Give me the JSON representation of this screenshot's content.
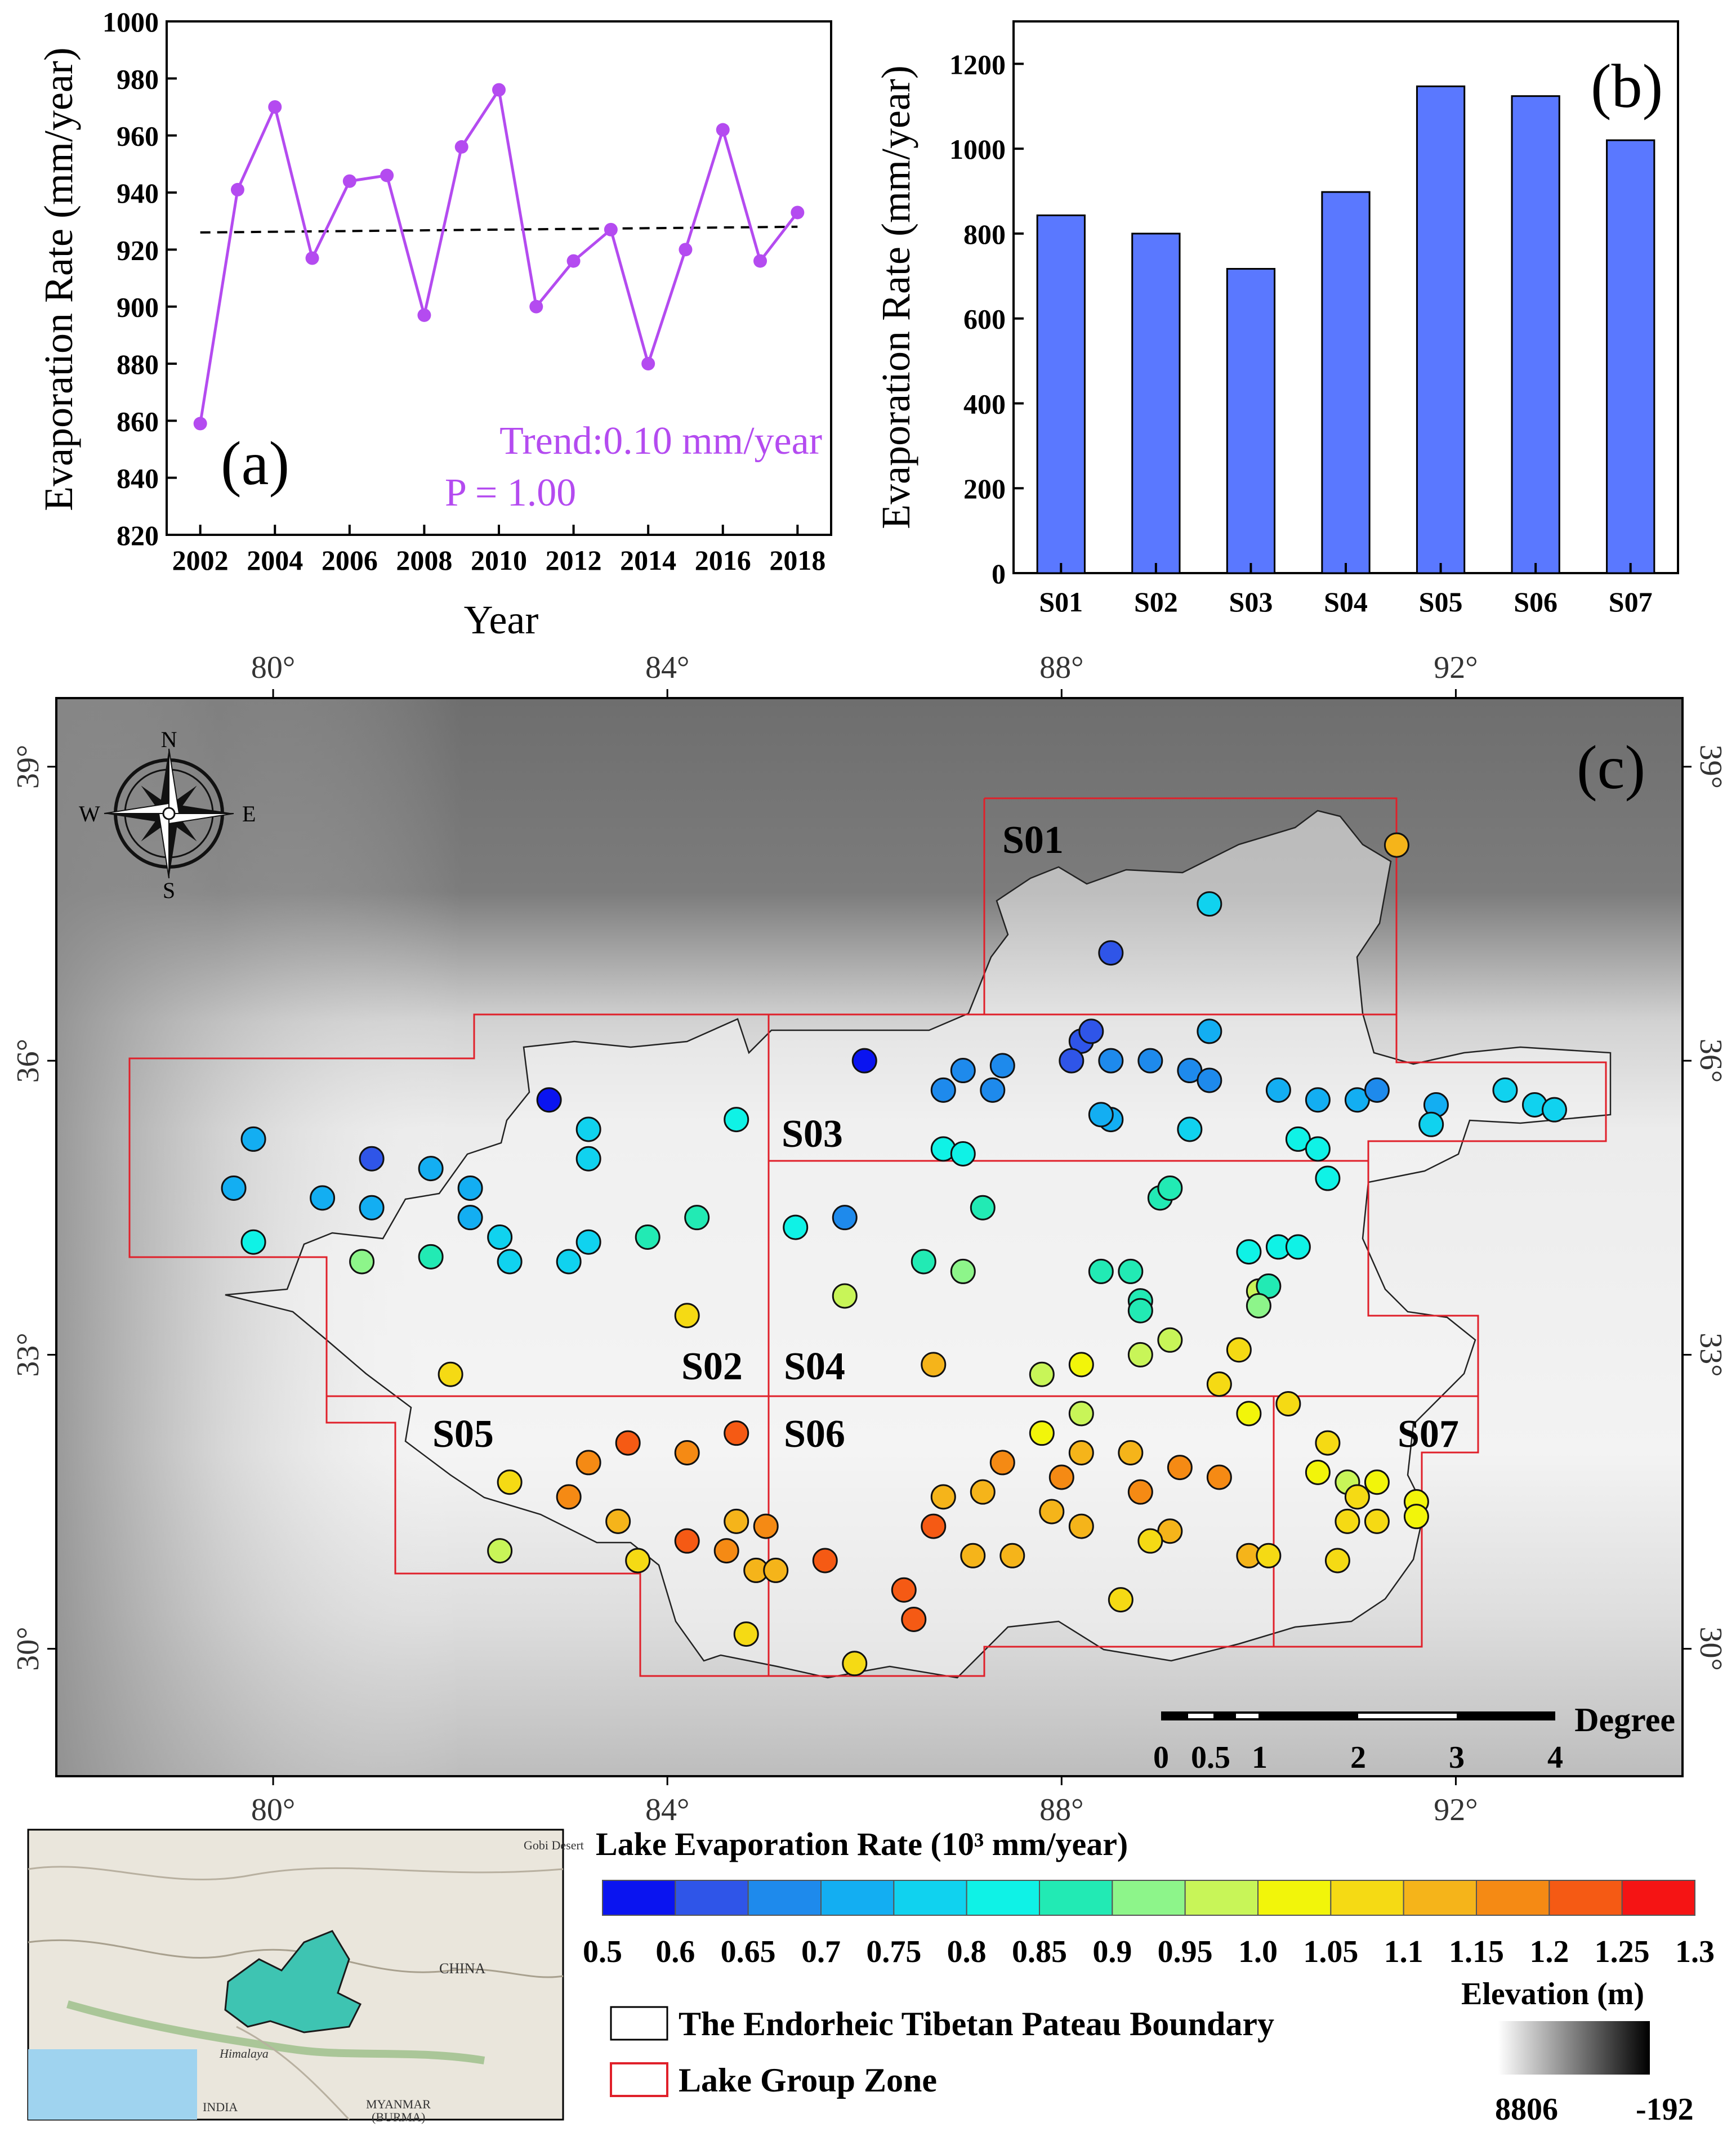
{
  "colors": {
    "line_a": "#b44bf0",
    "bar_b": "#5a78ff",
    "zone": "#e0202a",
    "boundary": "#222222"
  },
  "chart_data": [
    {
      "id": "a",
      "type": "line",
      "panel_label": "(a)",
      "xlabel": "Year",
      "ylabel": "Evaporation Rate (mm/year)",
      "xlim": [
        2001.1,
        2018.9
      ],
      "ylim": [
        820,
        1000
      ],
      "xticks": [
        "2002",
        "2004",
        "2006",
        "2008",
        "2010",
        "2012",
        "2014",
        "2016",
        "2018"
      ],
      "yticks": [
        "820",
        "840",
        "860",
        "880",
        "900",
        "920",
        "940",
        "960",
        "980",
        "1000"
      ],
      "x": [
        2002,
        2003,
        2004,
        2005,
        2006,
        2007,
        2008,
        2009,
        2010,
        2011,
        2012,
        2013,
        2014,
        2015,
        2016,
        2017,
        2018
      ],
      "values": [
        859,
        941,
        970,
        917,
        944,
        946,
        897,
        956,
        976,
        900,
        916,
        927,
        880,
        920,
        962,
        916,
        933
      ],
      "trend": {
        "from": [
          2002,
          926
        ],
        "to": [
          2018,
          928
        ]
      },
      "annotations": {
        "trend": "Trend:0.10 mm/year",
        "p": "P = 1.00"
      }
    },
    {
      "id": "b",
      "type": "bar",
      "panel_label": "(b)",
      "xlabel": "",
      "ylabel": "Evaporation Rate (mm/year)",
      "ylim": [
        0,
        1300
      ],
      "yticks": [
        "0",
        "200",
        "400",
        "600",
        "800",
        "1000",
        "1200"
      ],
      "categories": [
        "S01",
        "S02",
        "S03",
        "S04",
        "S05",
        "S06",
        "S07"
      ],
      "values": [
        843,
        800,
        717,
        898,
        1147,
        1124,
        1020
      ]
    },
    {
      "id": "c",
      "type": "scatter",
      "panel_label": "(c)",
      "lon_range": [
        77.8,
        94.3
      ],
      "lat_range": [
        28.7,
        39.7
      ],
      "lon_ticks": [
        "80°",
        "84°",
        "88°",
        "92°"
      ],
      "lat_ticks": [
        "39°",
        "36°",
        "33°",
        "30°"
      ],
      "compass": {
        "n": "N",
        "s": "S",
        "e": "E",
        "w": "W"
      },
      "zones": [
        {
          "name": "S01",
          "label_at": [
            87.7,
            38.6
          ]
        },
        {
          "name": "S02",
          "label_at": [
            84.6,
            32.9
          ]
        },
        {
          "name": "S03",
          "label_at": [
            86.3,
            35.4
          ]
        },
        {
          "name": "S04",
          "label_at": [
            85.8,
            32.9
          ]
        },
        {
          "name": "S05",
          "label_at": [
            82.0,
            32.2
          ]
        },
        {
          "name": "S06",
          "label_at": [
            85.8,
            32.2
          ]
        },
        {
          "name": "S07",
          "label_at": [
            91.3,
            32.1
          ]
        }
      ],
      "scale_bar": {
        "unit": "Degree",
        "labels": [
          "0",
          "0.5",
          "1",
          "2",
          "3",
          "4"
        ]
      },
      "colorbar": {
        "title": "Lake Evaporation Rate (10³ mm/year)",
        "ticks": [
          "0.5",
          "0.6",
          "0.65",
          "0.7",
          "0.75",
          "0.8",
          "0.85",
          "0.9",
          "0.95",
          "1.0",
          "1.05",
          "1.1",
          "1.15",
          "1.2",
          "1.25",
          "1.3"
        ],
        "colors": [
          "#0a14f0",
          "#2f55e8",
          "#1e8aec",
          "#13aef2",
          "#10d2ef",
          "#0ff2e6",
          "#22eab4",
          "#8df58a",
          "#c8f558",
          "#f2f50a",
          "#f5da14",
          "#f5b41a",
          "#f58a14",
          "#f55a14",
          "#f51414"
        ]
      },
      "legend": {
        "boundary": "The Endorheic Tibetan Pateau Boundary",
        "zone": "Lake Group Zone"
      },
      "elevation": {
        "title": "Elevation (m)",
        "max": "8806",
        "min": "-192"
      },
      "inset": {
        "gobi": "Gobi Desert",
        "china": "CHINA",
        "himalaya": "Himalaya",
        "india": "INDIA",
        "myanmar": "MYANMAR",
        "burma": "(BURMA)"
      },
      "lakes": [
        [
          91.4,
          38.2,
          1.1
        ],
        [
          89.5,
          37.6,
          0.75
        ],
        [
          88.5,
          37.1,
          0.6
        ],
        [
          86.0,
          36.0,
          0.5
        ],
        [
          88.2,
          36.2,
          0.6
        ],
        [
          88.3,
          36.3,
          0.6
        ],
        [
          88.1,
          36.0,
          0.6
        ],
        [
          88.5,
          36.0,
          0.65
        ],
        [
          88.9,
          36.0,
          0.65
        ],
        [
          89.3,
          35.9,
          0.65
        ],
        [
          89.5,
          36.3,
          0.7
        ],
        [
          89.5,
          35.8,
          0.65
        ],
        [
          87.0,
          35.9,
          0.65
        ],
        [
          87.4,
          35.95,
          0.65
        ],
        [
          86.8,
          35.7,
          0.65
        ],
        [
          87.3,
          35.7,
          0.65
        ],
        [
          88.5,
          35.4,
          0.7
        ],
        [
          88.4,
          35.45,
          0.7
        ],
        [
          89.3,
          35.3,
          0.75
        ],
        [
          86.8,
          35.1,
          0.8
        ],
        [
          87.0,
          35.05,
          0.8
        ],
        [
          90.2,
          35.7,
          0.7
        ],
        [
          90.6,
          35.6,
          0.7
        ],
        [
          91.0,
          35.6,
          0.7
        ],
        [
          91.2,
          35.7,
          0.65
        ],
        [
          91.8,
          35.55,
          0.7
        ],
        [
          91.75,
          35.35,
          0.75
        ],
        [
          92.5,
          35.7,
          0.75
        ],
        [
          92.8,
          35.55,
          0.75
        ],
        [
          93.0,
          35.5,
          0.75
        ],
        [
          90.4,
          35.2,
          0.8
        ],
        [
          90.6,
          35.1,
          0.8
        ],
        [
          90.7,
          34.8,
          0.8
        ],
        [
          82.8,
          35.6,
          0.5
        ],
        [
          79.8,
          35.2,
          0.7
        ],
        [
          81.0,
          35.0,
          0.6
        ],
        [
          81.6,
          34.9,
          0.7
        ],
        [
          82.0,
          34.7,
          0.7
        ],
        [
          83.2,
          35.3,
          0.75
        ],
        [
          83.2,
          35.0,
          0.75
        ],
        [
          84.7,
          35.4,
          0.8
        ],
        [
          79.6,
          34.7,
          0.7
        ],
        [
          80.5,
          34.6,
          0.7
        ],
        [
          81.0,
          34.5,
          0.7
        ],
        [
          82.0,
          34.4,
          0.7
        ],
        [
          82.3,
          34.2,
          0.75
        ],
        [
          79.8,
          34.15,
          0.8
        ],
        [
          80.9,
          33.95,
          0.9
        ],
        [
          81.6,
          34.0,
          0.85
        ],
        [
          82.4,
          33.95,
          0.75
        ],
        [
          83.0,
          33.95,
          0.75
        ],
        [
          83.2,
          34.15,
          0.75
        ],
        [
          83.8,
          34.2,
          0.85
        ],
        [
          84.3,
          34.4,
          0.85
        ],
        [
          84.2,
          33.4,
          1.05
        ],
        [
          81.8,
          32.8,
          1.05
        ],
        [
          85.3,
          34.3,
          0.8
        ],
        [
          85.8,
          34.4,
          0.65
        ],
        [
          86.6,
          33.95,
          0.85
        ],
        [
          87.2,
          34.5,
          0.85
        ],
        [
          87.0,
          33.85,
          0.9
        ],
        [
          85.8,
          33.6,
          0.95
        ],
        [
          86.7,
          32.9,
          1.1
        ],
        [
          89.0,
          34.6,
          0.85
        ],
        [
          89.1,
          34.7,
          0.85
        ],
        [
          88.4,
          33.85,
          0.85
        ],
        [
          88.7,
          33.85,
          0.85
        ],
        [
          88.8,
          33.55,
          0.85
        ],
        [
          88.8,
          33.45,
          0.85
        ],
        [
          88.8,
          33.0,
          0.95
        ],
        [
          89.1,
          33.15,
          0.95
        ],
        [
          88.2,
          32.9,
          1.0
        ],
        [
          87.8,
          32.8,
          0.95
        ],
        [
          89.9,
          34.05,
          0.8
        ],
        [
          90.2,
          34.1,
          0.8
        ],
        [
          90.4,
          34.1,
          0.8
        ],
        [
          90.0,
          33.65,
          0.95
        ],
        [
          90.1,
          33.7,
          0.85
        ],
        [
          90.0,
          33.5,
          0.9
        ],
        [
          89.8,
          33.05,
          1.05
        ],
        [
          89.6,
          32.7,
          1.05
        ],
        [
          83.6,
          32.1,
          1.2
        ],
        [
          84.7,
          32.2,
          1.2
        ],
        [
          84.2,
          32.0,
          1.15
        ],
        [
          83.2,
          31.9,
          1.15
        ],
        [
          82.4,
          31.7,
          1.05
        ],
        [
          83.0,
          31.55,
          1.15
        ],
        [
          83.5,
          31.3,
          1.1
        ],
        [
          84.7,
          31.3,
          1.1
        ],
        [
          84.2,
          31.1,
          1.2
        ],
        [
          84.6,
          31.0,
          1.15
        ],
        [
          85.0,
          31.25,
          1.15
        ],
        [
          82.3,
          31.0,
          0.95
        ],
        [
          83.7,
          30.9,
          1.05
        ],
        [
          84.9,
          30.8,
          1.1
        ],
        [
          85.1,
          30.8,
          1.1
        ],
        [
          84.8,
          30.15,
          1.05
        ],
        [
          88.2,
          32.4,
          0.95
        ],
        [
          87.8,
          32.2,
          1.0
        ],
        [
          88.2,
          32.0,
          1.1
        ],
        [
          88.7,
          32.0,
          1.1
        ],
        [
          87.4,
          31.9,
          1.15
        ],
        [
          88.0,
          31.75,
          1.15
        ],
        [
          89.2,
          31.85,
          1.15
        ],
        [
          89.6,
          31.75,
          1.15
        ],
        [
          86.8,
          31.55,
          1.1
        ],
        [
          87.2,
          31.6,
          1.1
        ],
        [
          88.8,
          31.6,
          1.15
        ],
        [
          87.9,
          31.4,
          1.1
        ],
        [
          88.2,
          31.25,
          1.1
        ],
        [
          89.1,
          31.2,
          1.1
        ],
        [
          86.7,
          31.25,
          1.2
        ],
        [
          87.1,
          30.95,
          1.1
        ],
        [
          87.5,
          30.95,
          1.1
        ],
        [
          88.9,
          31.1,
          1.05
        ],
        [
          89.9,
          30.95,
          1.1
        ],
        [
          90.1,
          30.95,
          1.05
        ],
        [
          85.6,
          30.9,
          1.2
        ],
        [
          86.4,
          30.6,
          1.2
        ],
        [
          86.5,
          30.3,
          1.2
        ],
        [
          88.6,
          30.5,
          1.05
        ],
        [
          89.9,
          32.4,
          1.0
        ],
        [
          90.3,
          32.5,
          1.05
        ],
        [
          85.9,
          29.85,
          1.05
        ],
        [
          90.7,
          32.1,
          1.05
        ],
        [
          90.6,
          31.8,
          1.0
        ],
        [
          90.9,
          31.7,
          0.95
        ],
        [
          91.2,
          31.7,
          1.0
        ],
        [
          91.0,
          31.55,
          1.05
        ],
        [
          91.6,
          31.5,
          1.0
        ],
        [
          90.9,
          31.3,
          1.05
        ],
        [
          91.2,
          31.3,
          1.05
        ],
        [
          91.6,
          31.35,
          1.0
        ],
        [
          90.8,
          30.9,
          1.05
        ]
      ]
    }
  ]
}
